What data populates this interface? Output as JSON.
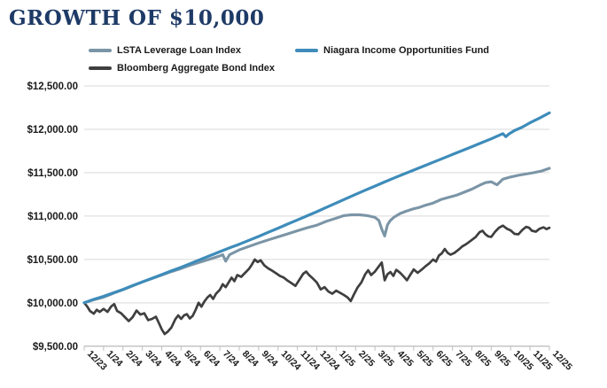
{
  "title": "GROWTH OF $10,000",
  "legend": [
    {
      "label": "LSTA Leverage Loan Index",
      "color": "#7b95a6"
    },
    {
      "label": "Niagara Income Opportunities Fund",
      "color": "#3e8cba"
    },
    {
      "label": "Bloomberg Aggregate Bond Index",
      "color": "#3f3f3f"
    }
  ],
  "colors": {
    "title": "#1e3a66",
    "axis_text": "#1a1a1a",
    "gridline": "#d9d9d9",
    "axis_line": "#bfbfbf",
    "background": "#ffffff"
  },
  "chart_data": {
    "type": "line",
    "title": "GROWTH OF $10,000",
    "xlabel": "",
    "ylabel": "",
    "grid": true,
    "legend_position": "top",
    "x_unit": "months since 12/2023",
    "x_range": [
      0,
      24
    ],
    "ylim": [
      9500,
      12500
    ],
    "y_ticks": [
      9500,
      10000,
      10500,
      11000,
      11500,
      12000,
      12500
    ],
    "y_tick_labels": [
      "$9,500.00",
      "$10,000.00",
      "$10,500.00",
      "$11,000.00",
      "$11,500.00",
      "$12,000.00",
      "$12,500.00"
    ],
    "x_tick_labels": [
      "12/23",
      "1/24",
      "2/24",
      "3/24",
      "4/24",
      "5/24",
      "6/24",
      "7/24",
      "8/24",
      "9/24",
      "10/24",
      "11/24",
      "12/24",
      "1/25",
      "2/25",
      "3/25",
      "4/25",
      "5/25",
      "6/25",
      "7/25",
      "8/25",
      "9/25",
      "10/25",
      "11/25",
      "12/25"
    ],
    "series": [
      {
        "name": "LSTA Leverage Loan Index",
        "color": "#7b95a6",
        "points": [
          [
            0,
            10000
          ],
          [
            0.5,
            10035
          ],
          [
            1,
            10065
          ],
          [
            1.5,
            10110
          ],
          [
            2,
            10150
          ],
          [
            2.5,
            10195
          ],
          [
            3,
            10240
          ],
          [
            3.5,
            10280
          ],
          [
            4,
            10320
          ],
          [
            4.5,
            10360
          ],
          [
            5,
            10395
          ],
          [
            5.5,
            10435
          ],
          [
            6,
            10470
          ],
          [
            6.5,
            10505
          ],
          [
            7,
            10540
          ],
          [
            7.15,
            10555
          ],
          [
            7.3,
            10480
          ],
          [
            7.5,
            10555
          ],
          [
            8,
            10610
          ],
          [
            8.5,
            10650
          ],
          [
            9,
            10690
          ],
          [
            9.5,
            10725
          ],
          [
            10,
            10760
          ],
          [
            10.5,
            10795
          ],
          [
            11,
            10830
          ],
          [
            11.5,
            10865
          ],
          [
            12,
            10895
          ],
          [
            12.5,
            10940
          ],
          [
            13,
            10975
          ],
          [
            13.4,
            11005
          ],
          [
            13.8,
            11015
          ],
          [
            14.2,
            11015
          ],
          [
            14.6,
            11005
          ],
          [
            15.0,
            10985
          ],
          [
            15.2,
            10950
          ],
          [
            15.35,
            10850
          ],
          [
            15.5,
            10770
          ],
          [
            15.65,
            10900
          ],
          [
            15.8,
            10950
          ],
          [
            16,
            10990
          ],
          [
            16.3,
            11030
          ],
          [
            16.6,
            11055
          ],
          [
            17,
            11085
          ],
          [
            17.3,
            11100
          ],
          [
            17.6,
            11125
          ],
          [
            18,
            11150
          ],
          [
            18.4,
            11190
          ],
          [
            18.8,
            11215
          ],
          [
            19.2,
            11240
          ],
          [
            19.6,
            11275
          ],
          [
            20,
            11310
          ],
          [
            20.4,
            11355
          ],
          [
            20.7,
            11385
          ],
          [
            21,
            11395
          ],
          [
            21.3,
            11360
          ],
          [
            21.6,
            11425
          ],
          [
            22,
            11450
          ],
          [
            22.4,
            11470
          ],
          [
            22.8,
            11485
          ],
          [
            23.2,
            11500
          ],
          [
            23.6,
            11520
          ],
          [
            24,
            11550
          ]
        ]
      },
      {
        "name": "Niagara Income Opportunities Fund",
        "color": "#3e8cba",
        "points": [
          [
            0,
            10000
          ],
          [
            0.5,
            10040
          ],
          [
            1,
            10075
          ],
          [
            1.5,
            10115
          ],
          [
            2,
            10155
          ],
          [
            2.5,
            10198
          ],
          [
            3,
            10240
          ],
          [
            3.5,
            10283
          ],
          [
            4,
            10325
          ],
          [
            4.5,
            10368
          ],
          [
            5,
            10410
          ],
          [
            5.5,
            10455
          ],
          [
            6,
            10500
          ],
          [
            6.5,
            10545
          ],
          [
            7,
            10590
          ],
          [
            7.5,
            10633
          ],
          [
            8,
            10675
          ],
          [
            8.5,
            10720
          ],
          [
            9,
            10765
          ],
          [
            9.5,
            10813
          ],
          [
            10,
            10860
          ],
          [
            10.5,
            10908
          ],
          [
            11,
            10955
          ],
          [
            11.5,
            11003
          ],
          [
            12,
            11050
          ],
          [
            12.5,
            11100
          ],
          [
            13,
            11150
          ],
          [
            13.5,
            11200
          ],
          [
            14,
            11250
          ],
          [
            14.5,
            11298
          ],
          [
            15,
            11345
          ],
          [
            15.5,
            11393
          ],
          [
            16,
            11440
          ],
          [
            16.5,
            11485
          ],
          [
            17,
            11530
          ],
          [
            17.5,
            11575
          ],
          [
            18,
            11620
          ],
          [
            18.5,
            11665
          ],
          [
            19,
            11710
          ],
          [
            19.5,
            11755
          ],
          [
            20,
            11800
          ],
          [
            20.5,
            11845
          ],
          [
            21,
            11890
          ],
          [
            21.4,
            11930
          ],
          [
            21.6,
            11950
          ],
          [
            21.75,
            11915
          ],
          [
            21.9,
            11945
          ],
          [
            22.2,
            11985
          ],
          [
            22.6,
            12025
          ],
          [
            23,
            12075
          ],
          [
            23.5,
            12130
          ],
          [
            24,
            12190
          ]
        ]
      },
      {
        "name": "Bloomberg Aggregate Bond Index",
        "color": "#3f3f3f",
        "points": [
          [
            0,
            10000
          ],
          [
            0.15,
            9960
          ],
          [
            0.3,
            9905
          ],
          [
            0.5,
            9875
          ],
          [
            0.65,
            9920
          ],
          [
            0.8,
            9895
          ],
          [
            1.0,
            9930
          ],
          [
            1.2,
            9895
          ],
          [
            1.4,
            9960
          ],
          [
            1.55,
            9985
          ],
          [
            1.7,
            9905
          ],
          [
            1.9,
            9880
          ],
          [
            2.1,
            9835
          ],
          [
            2.3,
            9790
          ],
          [
            2.5,
            9835
          ],
          [
            2.7,
            9910
          ],
          [
            2.9,
            9865
          ],
          [
            3.1,
            9880
          ],
          [
            3.3,
            9800
          ],
          [
            3.5,
            9815
          ],
          [
            3.7,
            9840
          ],
          [
            3.85,
            9770
          ],
          [
            4.0,
            9695
          ],
          [
            4.15,
            9640
          ],
          [
            4.3,
            9665
          ],
          [
            4.5,
            9715
          ],
          [
            4.7,
            9810
          ],
          [
            4.85,
            9855
          ],
          [
            5.0,
            9815
          ],
          [
            5.15,
            9855
          ],
          [
            5.3,
            9870
          ],
          [
            5.45,
            9820
          ],
          [
            5.6,
            9850
          ],
          [
            5.75,
            9920
          ],
          [
            5.9,
            10000
          ],
          [
            6.05,
            9955
          ],
          [
            6.2,
            10015
          ],
          [
            6.35,
            10060
          ],
          [
            6.5,
            10090
          ],
          [
            6.65,
            10045
          ],
          [
            6.8,
            10105
          ],
          [
            7.0,
            10150
          ],
          [
            7.15,
            10215
          ],
          [
            7.3,
            10180
          ],
          [
            7.45,
            10235
          ],
          [
            7.6,
            10290
          ],
          [
            7.75,
            10250
          ],
          [
            7.9,
            10320
          ],
          [
            8.1,
            10300
          ],
          [
            8.3,
            10345
          ],
          [
            8.5,
            10390
          ],
          [
            8.65,
            10440
          ],
          [
            8.8,
            10500
          ],
          [
            8.95,
            10470
          ],
          [
            9.1,
            10490
          ],
          [
            9.3,
            10430
          ],
          [
            9.5,
            10395
          ],
          [
            9.7,
            10370
          ],
          [
            9.9,
            10340
          ],
          [
            10.1,
            10310
          ],
          [
            10.3,
            10290
          ],
          [
            10.5,
            10255
          ],
          [
            10.7,
            10225
          ],
          [
            10.9,
            10195
          ],
          [
            11.1,
            10265
          ],
          [
            11.3,
            10335
          ],
          [
            11.45,
            10360
          ],
          [
            11.6,
            10320
          ],
          [
            11.8,
            10280
          ],
          [
            12.0,
            10235
          ],
          [
            12.2,
            10155
          ],
          [
            12.4,
            10180
          ],
          [
            12.6,
            10130
          ],
          [
            12.8,
            10105
          ],
          [
            13.0,
            10140
          ],
          [
            13.2,
            10115
          ],
          [
            13.4,
            10090
          ],
          [
            13.6,
            10060
          ],
          [
            13.75,
            10020
          ],
          [
            13.9,
            10090
          ],
          [
            14.1,
            10175
          ],
          [
            14.3,
            10235
          ],
          [
            14.5,
            10330
          ],
          [
            14.65,
            10375
          ],
          [
            14.8,
            10320
          ],
          [
            15.0,
            10360
          ],
          [
            15.2,
            10420
          ],
          [
            15.35,
            10465
          ],
          [
            15.5,
            10260
          ],
          [
            15.65,
            10330
          ],
          [
            15.8,
            10355
          ],
          [
            15.95,
            10310
          ],
          [
            16.1,
            10380
          ],
          [
            16.3,
            10345
          ],
          [
            16.5,
            10300
          ],
          [
            16.65,
            10260
          ],
          [
            16.8,
            10315
          ],
          [
            17.0,
            10385
          ],
          [
            17.2,
            10345
          ],
          [
            17.4,
            10380
          ],
          [
            17.6,
            10420
          ],
          [
            17.8,
            10455
          ],
          [
            18.0,
            10500
          ],
          [
            18.15,
            10475
          ],
          [
            18.3,
            10545
          ],
          [
            18.45,
            10570
          ],
          [
            18.6,
            10620
          ],
          [
            18.75,
            10575
          ],
          [
            18.9,
            10555
          ],
          [
            19.1,
            10575
          ],
          [
            19.3,
            10610
          ],
          [
            19.5,
            10650
          ],
          [
            19.7,
            10675
          ],
          [
            19.85,
            10700
          ],
          [
            20.0,
            10725
          ],
          [
            20.2,
            10760
          ],
          [
            20.4,
            10815
          ],
          [
            20.55,
            10830
          ],
          [
            20.7,
            10790
          ],
          [
            20.85,
            10765
          ],
          [
            21.0,
            10760
          ],
          [
            21.2,
            10820
          ],
          [
            21.4,
            10865
          ],
          [
            21.6,
            10890
          ],
          [
            21.8,
            10855
          ],
          [
            22.0,
            10835
          ],
          [
            22.2,
            10795
          ],
          [
            22.4,
            10790
          ],
          [
            22.6,
            10840
          ],
          [
            22.8,
            10875
          ],
          [
            22.95,
            10865
          ],
          [
            23.1,
            10830
          ],
          [
            23.3,
            10820
          ],
          [
            23.5,
            10855
          ],
          [
            23.7,
            10870
          ],
          [
            23.85,
            10850
          ],
          [
            24.0,
            10865
          ]
        ]
      }
    ]
  }
}
